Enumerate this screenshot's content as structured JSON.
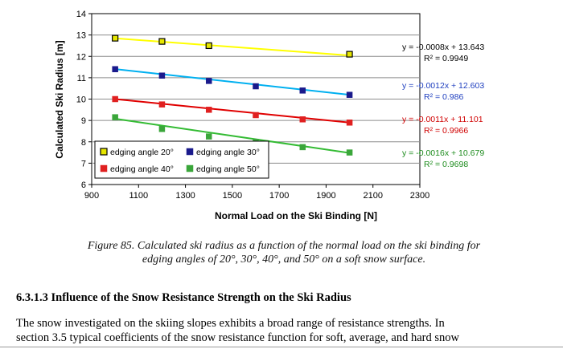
{
  "chart_data": {
    "type": "scatter",
    "xlabel": "Normal Load on the Ski Binding [N]",
    "ylabel": "Calculated Ski Radius [m]",
    "xlim": [
      900,
      2300
    ],
    "ylim": [
      6,
      14
    ],
    "xticks": [
      "900",
      "1100",
      "1300",
      "1500",
      "1700",
      "1900",
      "2100",
      "2300"
    ],
    "yticks": [
      "6",
      "7",
      "8",
      "9",
      "10",
      "11",
      "12",
      "13",
      "14"
    ],
    "grid": "horizontal",
    "legend_position": "bottom-left",
    "series": [
      {
        "name": "edging angle 20°",
        "marker_color": "#e6e600",
        "line_color": "#ffff00",
        "x": [
          1000,
          1200,
          1400,
          2000
        ],
        "y": [
          12.85,
          12.7,
          12.5,
          12.1
        ],
        "fit": {
          "slope": -0.0008,
          "intercept": 13.643
        },
        "equation": "y = -0.0008x + 13.643",
        "r2": "R² = 0.9949",
        "label_color": "#000000"
      },
      {
        "name": "edging angle 30°",
        "marker_color": "#1a1a8c",
        "line_color": "#00b0f0",
        "x": [
          1000,
          1200,
          1400,
          1600,
          1800,
          2000
        ],
        "y": [
          11.4,
          11.1,
          10.85,
          10.6,
          10.4,
          10.2
        ],
        "fit": {
          "slope": -0.0012,
          "intercept": 12.603
        },
        "equation": "y = -0.0012x + 12.603",
        "r2": "R² = 0.986",
        "label_color": "#1f3fbf"
      },
      {
        "name": "edging angle 40°",
        "marker_color": "#e02020",
        "line_color": "#e00000",
        "x": [
          1000,
          1200,
          1400,
          1600,
          1800,
          2000
        ],
        "y": [
          10.0,
          9.75,
          9.5,
          9.25,
          9.05,
          8.9
        ],
        "fit": {
          "slope": -0.0011,
          "intercept": 11.101
        },
        "equation": "y = -0.0011x + 11.101",
        "r2": "R² = 0.9966",
        "label_color": "#d00000"
      },
      {
        "name": "edging angle 50°",
        "marker_color": "#3aa63a",
        "line_color": "#33bb33",
        "x": [
          1000,
          1200,
          1400,
          1600,
          1800,
          2000
        ],
        "y": [
          9.15,
          8.6,
          8.25,
          8.0,
          7.75,
          7.5
        ],
        "fit": {
          "slope": -0.0016,
          "intercept": 10.679
        },
        "equation": "y = -0.0016x + 10.679",
        "r2": "R² = 0.9698",
        "label_color": "#1e8c1e"
      }
    ]
  },
  "caption": {
    "line1": "Figure 85.  Calculated ski radius as a function of the normal load on the ski binding for",
    "line2": "edging angles of 20°, 30°, 40°, and 50° on a soft snow surface."
  },
  "section": {
    "heading": "6.3.1.3  Influence of the Snow Resistance Strength on the Ski Radius"
  },
  "body": {
    "line1": "The snow investigated on the skiing slopes exhibits a broad range of resistance strengths. In",
    "line2": "section 3.5 typical coefficients of the snow resistance function for soft, average, and hard snow"
  }
}
